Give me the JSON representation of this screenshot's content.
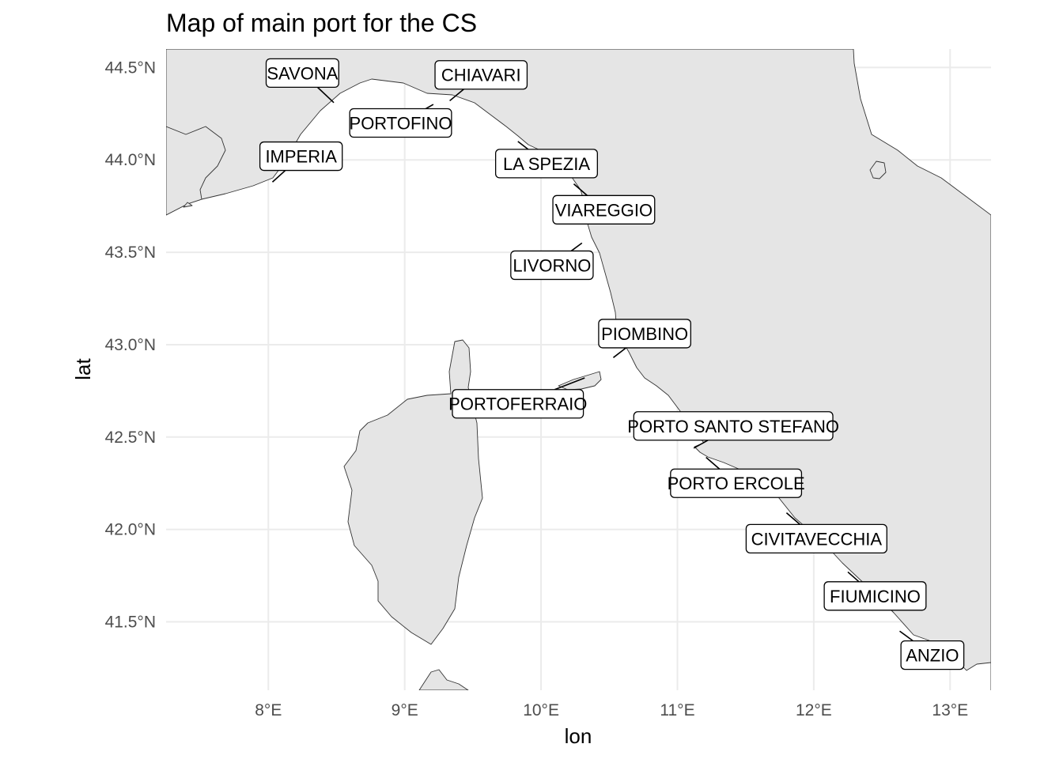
{
  "chart_data": {
    "type": "map",
    "title": "Map of main port for the CS",
    "xlabel": "lon",
    "ylabel": "lat",
    "xlim": [
      7.25,
      13.3
    ],
    "ylim": [
      41.13,
      44.6
    ],
    "x_ticks": [
      {
        "value": 8,
        "label": "8°E"
      },
      {
        "value": 9,
        "label": "9°E"
      },
      {
        "value": 10,
        "label": "10°E"
      },
      {
        "value": 11,
        "label": "11°E"
      },
      {
        "value": 12,
        "label": "12°E"
      },
      {
        "value": 13,
        "label": "13°E"
      }
    ],
    "y_ticks": [
      {
        "value": 41.5,
        "label": "41.5°N"
      },
      {
        "value": 42.0,
        "label": "42.0°N"
      },
      {
        "value": 42.5,
        "label": "42.5°N"
      },
      {
        "value": 43.0,
        "label": "43.0°N"
      },
      {
        "value": 43.5,
        "label": "43.5°N"
      },
      {
        "value": 44.0,
        "label": "44.0°N"
      },
      {
        "value": 44.5,
        "label": "44.5°N"
      }
    ],
    "grid": true,
    "land_color": "#e5e5e5",
    "coast_color": "#333333",
    "ports": [
      {
        "name": "SAVONA",
        "lon": 8.48,
        "lat": 44.31,
        "label_lon": 8.25,
        "label_lat": 44.47
      },
      {
        "name": "CHIAVARI",
        "lon": 9.33,
        "lat": 44.32,
        "label_lon": 9.56,
        "label_lat": 44.46
      },
      {
        "name": "PORTOFINO",
        "lon": 9.21,
        "lat": 44.3,
        "label_lon": 8.97,
        "label_lat": 44.2
      },
      {
        "name": "IMPERIA",
        "lon": 8.03,
        "lat": 43.88,
        "label_lon": 8.24,
        "label_lat": 44.02
      },
      {
        "name": "LA SPEZIA",
        "lon": 9.83,
        "lat": 44.1,
        "label_lon": 10.04,
        "label_lat": 43.98
      },
      {
        "name": "VIAREGGIO",
        "lon": 10.24,
        "lat": 43.87,
        "label_lon": 10.46,
        "label_lat": 43.73
      },
      {
        "name": "LIVORNO",
        "lon": 10.3,
        "lat": 43.55,
        "label_lon": 10.08,
        "label_lat": 43.43
      },
      {
        "name": "PIOMBINO",
        "lon": 10.53,
        "lat": 42.93,
        "label_lon": 10.76,
        "label_lat": 43.06
      },
      {
        "name": "PORTOFERRAIO",
        "lon": 10.32,
        "lat": 42.82,
        "label_lon": 9.83,
        "label_lat": 42.68
      },
      {
        "name": "PORTO SANTO STEFANO",
        "lon": 11.12,
        "lat": 42.44,
        "label_lon": 11.41,
        "label_lat": 42.56
      },
      {
        "name": "PORTO ERCOLE",
        "lon": 11.21,
        "lat": 42.39,
        "label_lon": 11.43,
        "label_lat": 42.25
      },
      {
        "name": "CIVITAVECCHIA",
        "lon": 11.8,
        "lat": 42.09,
        "label_lon": 12.02,
        "label_lat": 41.95
      },
      {
        "name": "FIUMICINO",
        "lon": 12.25,
        "lat": 41.77,
        "label_lon": 12.45,
        "label_lat": 41.64
      },
      {
        "name": "ANZIO",
        "lon": 12.63,
        "lat": 41.45,
        "label_lon": 12.87,
        "label_lat": 41.32
      }
    ]
  }
}
